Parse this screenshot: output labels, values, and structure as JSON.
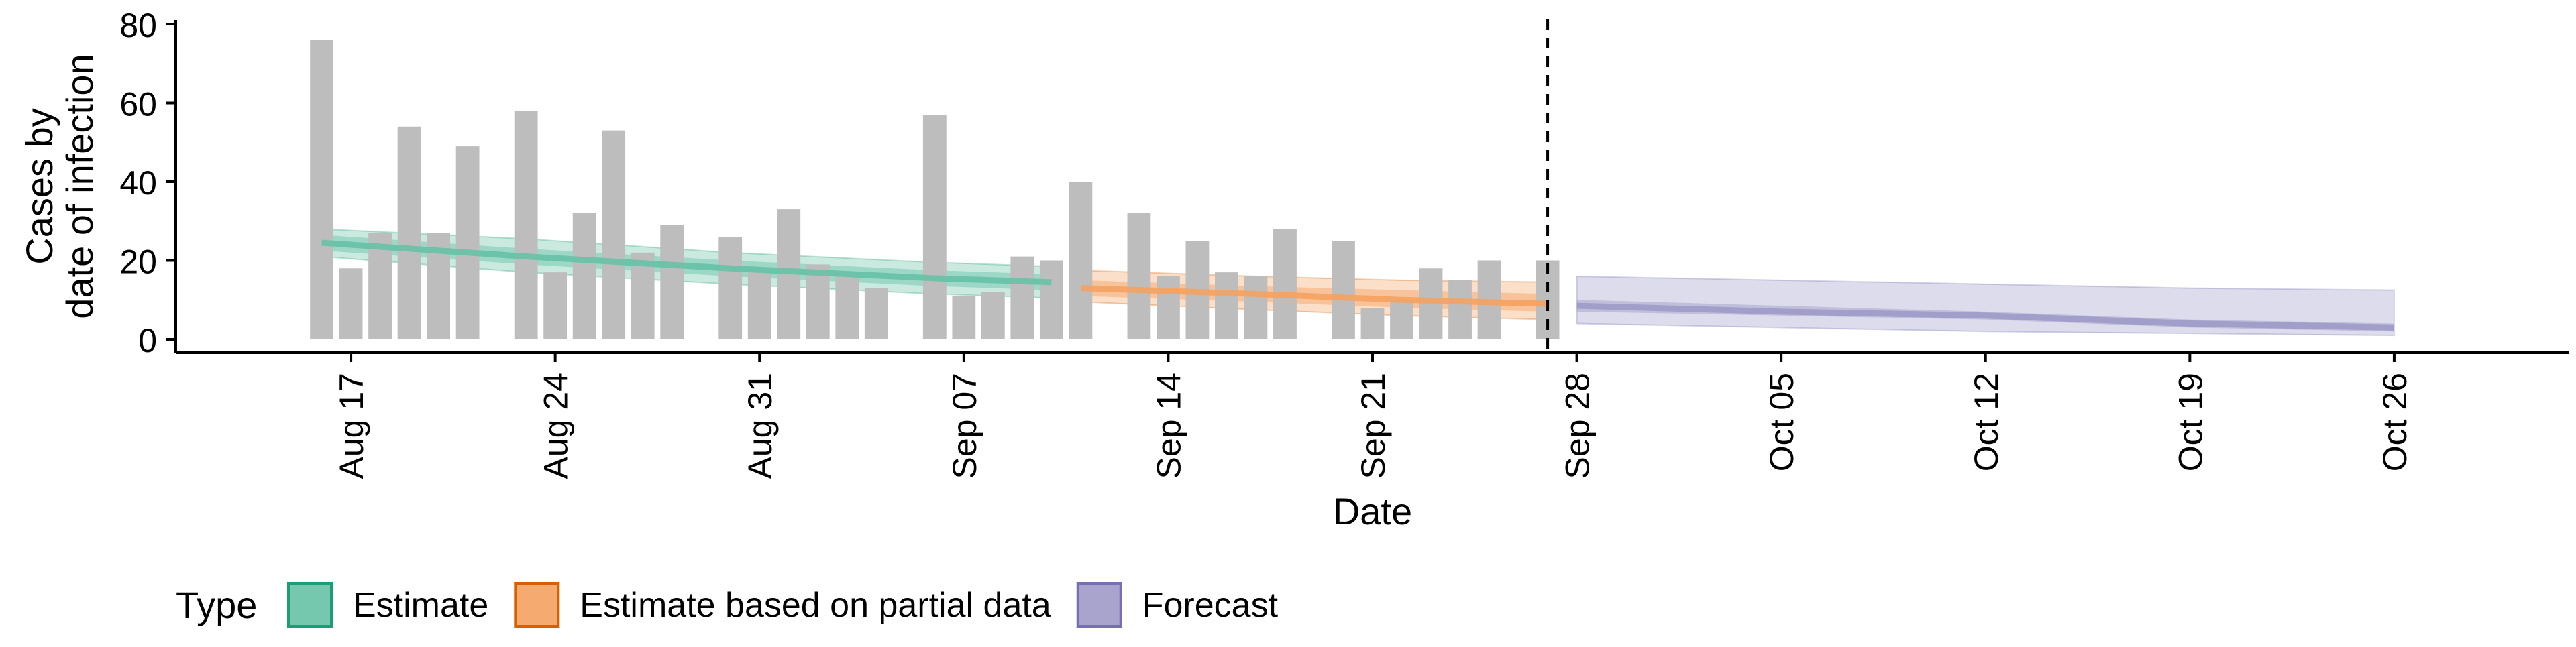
{
  "chart_data": {
    "type": "bar",
    "title": "",
    "xlabel": "Date",
    "ylabel_lines": [
      "Cases by",
      "date of infection"
    ],
    "ylim": [
      0,
      80
    ],
    "yticks": [
      0,
      20,
      40,
      60,
      80
    ],
    "x_range": [
      "2020-08-11",
      "2020-11-01"
    ],
    "xticks": [
      {
        "date": "2020-08-17",
        "label": "Aug 17"
      },
      {
        "date": "2020-08-24",
        "label": "Aug 24"
      },
      {
        "date": "2020-08-31",
        "label": "Aug 31"
      },
      {
        "date": "2020-09-07",
        "label": "Sep 07"
      },
      {
        "date": "2020-09-14",
        "label": "Sep 14"
      },
      {
        "date": "2020-09-21",
        "label": "Sep 21"
      },
      {
        "date": "2020-09-28",
        "label": "Sep 28"
      },
      {
        "date": "2020-10-05",
        "label": "Oct 05"
      },
      {
        "date": "2020-10-12",
        "label": "Oct 12"
      },
      {
        "date": "2020-10-19",
        "label": "Oct 19"
      },
      {
        "date": "2020-10-26",
        "label": "Oct 26"
      }
    ],
    "grid": false,
    "legend_position": "bottom-left",
    "legend_title": "Type",
    "reference_line_date": "2020-09-27",
    "bar_color": "#bdbdbd",
    "bars": {
      "dates": [
        "2020-08-16",
        "2020-08-17",
        "2020-08-18",
        "2020-08-19",
        "2020-08-20",
        "2020-08-21",
        "2020-08-22",
        "2020-08-23",
        "2020-08-24",
        "2020-08-25",
        "2020-08-26",
        "2020-08-27",
        "2020-08-28",
        "2020-08-29",
        "2020-08-30",
        "2020-08-31",
        "2020-09-01",
        "2020-09-02",
        "2020-09-03",
        "2020-09-04",
        "2020-09-05",
        "2020-09-06",
        "2020-09-07",
        "2020-09-08",
        "2020-09-09",
        "2020-09-10",
        "2020-09-11",
        "2020-09-12",
        "2020-09-13",
        "2020-09-14",
        "2020-09-15",
        "2020-09-16",
        "2020-09-17",
        "2020-09-18",
        "2020-09-19",
        "2020-09-20",
        "2020-09-21",
        "2020-09-22",
        "2020-09-23",
        "2020-09-24",
        "2020-09-25",
        "2020-09-26",
        "2020-09-27"
      ],
      "values": [
        76,
        18,
        27,
        54,
        27,
        49,
        0,
        58,
        17,
        32,
        53,
        22,
        29,
        0,
        26,
        17,
        33,
        19,
        16,
        13,
        0,
        57,
        11,
        12,
        21,
        20,
        40,
        0,
        32,
        16,
        25,
        17,
        16,
        28,
        0,
        25,
        8,
        10,
        18,
        15,
        20,
        0,
        20
      ]
    },
    "series": [
      {
        "name": "Estimate",
        "color": "#1b9e77",
        "fill": "#66c2a5",
        "dates": [
          "2020-08-16",
          "2020-08-23",
          "2020-08-30",
          "2020-09-06",
          "2020-09-10"
        ],
        "median": [
          24.5,
          21,
          18,
          15.5,
          14.5
        ],
        "lower50": [
          22.5,
          19,
          16,
          13.5,
          12.5
        ],
        "upper50": [
          26.5,
          23,
          20,
          17.5,
          16.5
        ],
        "lower90": [
          21,
          17,
          14,
          11.5,
          10.5
        ],
        "upper90": [
          28,
          25.5,
          22,
          19.5,
          18.5
        ]
      },
      {
        "name": "Estimate based on partial data",
        "color": "#d95f02",
        "fill": "#f4a261",
        "dates": [
          "2020-09-11",
          "2020-09-17",
          "2020-09-22",
          "2020-09-27"
        ],
        "median": [
          13,
          11.5,
          10,
          9
        ],
        "lower50": [
          11,
          9.5,
          8,
          7
        ],
        "upper50": [
          15,
          13.5,
          12.5,
          11.5
        ],
        "lower90": [
          9.5,
          7.5,
          6,
          5
        ],
        "upper90": [
          17.5,
          16,
          15,
          14.5
        ]
      },
      {
        "name": "Forecast",
        "color": "#7570b3",
        "fill": "#9e9ac8",
        "dates": [
          "2020-09-28",
          "2020-10-05",
          "2020-10-12",
          "2020-10-19",
          "2020-10-26"
        ],
        "median": [
          8.5,
          7,
          6,
          4,
          3
        ],
        "lower50": [
          7,
          6,
          5,
          3,
          2
        ],
        "upper50": [
          10,
          8.5,
          7,
          5,
          4
        ],
        "lower90": [
          4,
          3,
          2,
          1.5,
          1
        ],
        "upper90": [
          16,
          15,
          14,
          13,
          12.5
        ]
      }
    ]
  }
}
